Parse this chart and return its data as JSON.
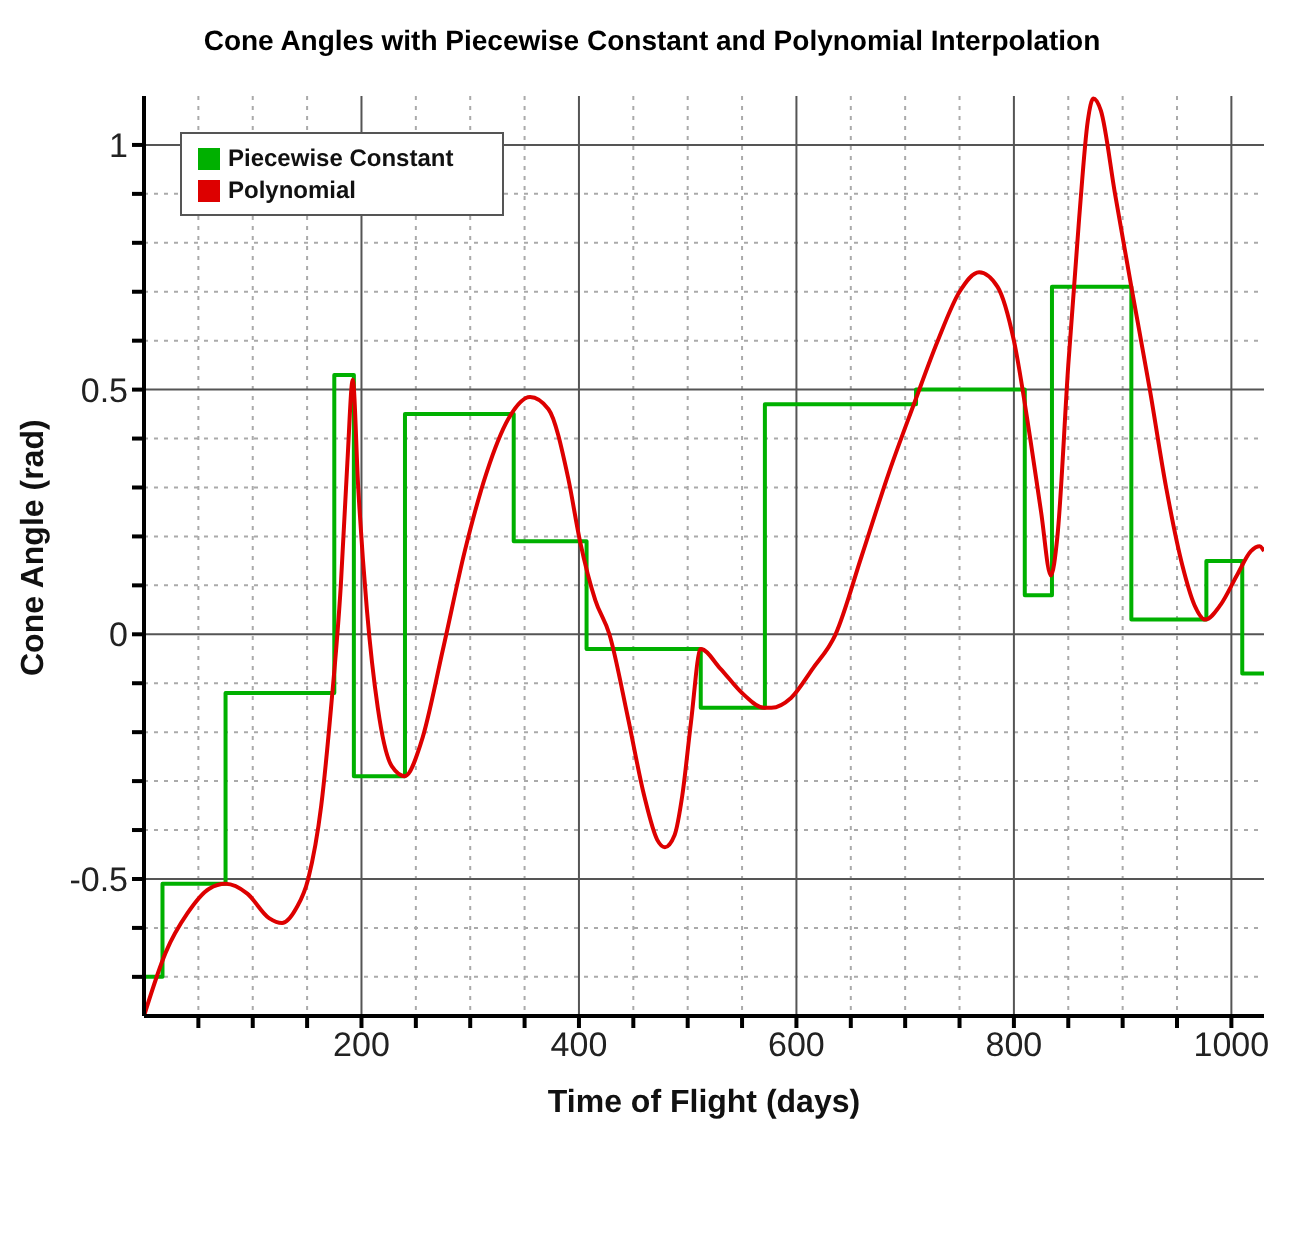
{
  "chart_data": {
    "type": "line",
    "title": "Cone Angles with Piecewise Constant and Polynomial Interpolation",
    "xlabel": "Time of Flight (days)",
    "ylabel": "Cone Angle (rad)",
    "xlim": [
      0,
      1030
    ],
    "ylim": [
      -0.78,
      1.1
    ],
    "xticks": [
      {
        "value": 50,
        "label": null
      },
      {
        "value": 100,
        "label": null
      },
      {
        "value": 150,
        "label": null
      },
      200,
      {
        "value": 250,
        "label": null
      },
      {
        "value": 300,
        "label": null
      },
      {
        "value": 350,
        "label": null
      },
      400,
      {
        "value": 450,
        "label": null
      },
      {
        "value": 500,
        "label": null
      },
      {
        "value": 550,
        "label": null
      },
      600,
      {
        "value": 650,
        "label": null
      },
      {
        "value": 700,
        "label": null
      },
      {
        "value": 750,
        "label": null
      },
      800,
      {
        "value": 850,
        "label": null
      },
      {
        "value": 900,
        "label": null
      },
      {
        "value": 950,
        "label": null
      },
      1000
    ],
    "yticks": [
      {
        "value": -0.7,
        "label": null
      },
      {
        "value": -0.6,
        "label": null
      },
      -0.5,
      {
        "value": -0.4,
        "label": null
      },
      {
        "value": -0.3,
        "label": null
      },
      {
        "value": -0.2,
        "label": null
      },
      {
        "value": -0.1,
        "label": null
      },
      0,
      {
        "value": 0.1,
        "label": null
      },
      {
        "value": 0.2,
        "label": null
      },
      {
        "value": 0.3,
        "label": null
      },
      {
        "value": 0.4,
        "label": null
      },
      0.5,
      {
        "value": 0.6,
        "label": null
      },
      {
        "value": 0.7,
        "label": null
      },
      {
        "value": 0.8,
        "label": null
      },
      {
        "value": 0.9,
        "label": null
      },
      1
    ],
    "grid": true,
    "legend": "top left",
    "marker": "none",
    "line_style": "solid",
    "series": [
      {
        "name": "Piecewise Constant",
        "type": "step",
        "color": "#00b000",
        "x": [
          0,
          17,
          75,
          175,
          193,
          240,
          340,
          407,
          512,
          571,
          710,
          810,
          835,
          908,
          977,
          1010,
          1030
        ],
        "values": [
          -0.7,
          -0.51,
          -0.12,
          0.53,
          -0.29,
          0.45,
          0.19,
          -0.03,
          -0.15,
          0.47,
          0.5,
          0.08,
          0.71,
          0.03,
          0.15,
          -0.08,
          -0.08
        ]
      },
      {
        "name": "Polynomial",
        "color": "#dd0000",
        "x": [
          0,
          20,
          40,
          60,
          75,
          95,
          115,
          127,
          140,
          151,
          163,
          172,
          181,
          187,
          192,
          197,
          205,
          215,
          228,
          240,
          255,
          275,
          295,
          315,
          335,
          355,
          372,
          390,
          401,
          415,
          428,
          445,
          460,
          472,
          479,
          488,
          495,
          503,
          512,
          530,
          550,
          570,
          577,
          595,
          615,
          636,
          660,
          685,
          708,
          730,
          750,
          768,
          785,
          800,
          815,
          825,
          834,
          840,
          850,
          860,
          868,
          873,
          880,
          893,
          908,
          925,
          940,
          955,
          966,
          976,
          990,
          1005,
          1018,
          1026,
          1030
        ],
        "values": [
          -0.78,
          -0.65,
          -0.57,
          -0.52,
          -0.51,
          -0.53,
          -0.58,
          -0.59,
          -0.56,
          -0.5,
          -0.35,
          -0.15,
          0.1,
          0.35,
          0.52,
          0.3,
          0.05,
          -0.15,
          -0.27,
          -0.29,
          -0.22,
          -0.03,
          0.17,
          0.33,
          0.44,
          0.485,
          0.46,
          0.32,
          0.19,
          0.07,
          0,
          -0.17,
          -0.33,
          -0.42,
          -0.435,
          -0.41,
          -0.33,
          -0.18,
          -0.03,
          -0.07,
          -0.12,
          -0.15,
          -0.15,
          -0.13,
          -0.07,
          0,
          0.16,
          0.33,
          0.47,
          0.6,
          0.7,
          0.74,
          0.71,
          0.6,
          0.4,
          0.25,
          0.12,
          0.2,
          0.55,
          0.85,
          1.05,
          1.095,
          1.07,
          0.9,
          0.71,
          0.5,
          0.3,
          0.14,
          0.06,
          0.03,
          0.06,
          0.12,
          0.17,
          0.18,
          0.17
        ]
      }
    ]
  }
}
